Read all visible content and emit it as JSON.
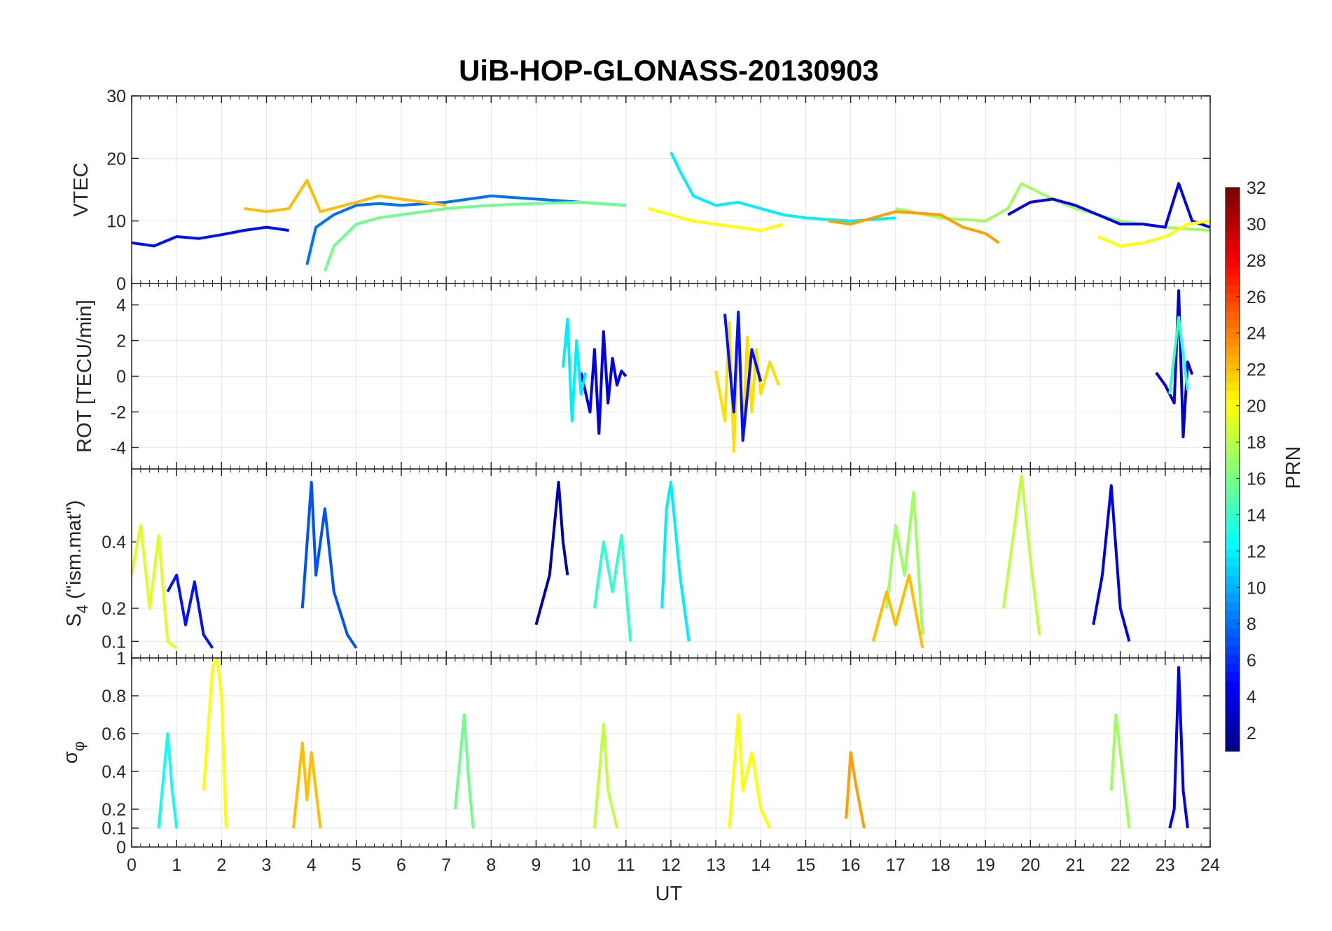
{
  "chart_data": {
    "title": "UiB-HOP-GLONASS-20130903",
    "type": "line",
    "x_label": "UT",
    "x_range": [
      0,
      24
    ],
    "x_ticks": [
      0,
      1,
      2,
      3,
      4,
      5,
      6,
      7,
      8,
      9,
      10,
      11,
      12,
      13,
      14,
      15,
      16,
      17,
      18,
      19,
      20,
      21,
      22,
      23,
      24
    ],
    "colorbar": {
      "label": "PRN",
      "range": [
        1,
        32
      ],
      "ticks": [
        2,
        4,
        6,
        8,
        10,
        12,
        14,
        16,
        18,
        20,
        22,
        24,
        26,
        28,
        30,
        32
      ],
      "colormap": "jet",
      "colors": [
        "#00008F",
        "#00009F",
        "#0000AF",
        "#0000BF",
        "#0000CF",
        "#0000DF",
        "#0000EF",
        "#0000FF",
        "#0010FF",
        "#0020FF",
        "#0030FF",
        "#0040FF",
        "#0050FF",
        "#0060FF",
        "#0070FF",
        "#0080FF",
        "#008FFF",
        "#009FFF",
        "#00AFFF",
        "#00BFFF",
        "#00CFFF",
        "#00DFFF",
        "#00EFFF",
        "#00FFFF",
        "#10FFEF",
        "#20FFDF",
        "#30FFCF",
        "#40FFBF",
        "#50FFAF",
        "#60FF9F",
        "#70FF8F",
        "#80FF80",
        "#8FFF70",
        "#9FFF60",
        "#AFFF50",
        "#BFFF40",
        "#CFFF30",
        "#DFFF20",
        "#EFFF10",
        "#FFFF00",
        "#FFEF00",
        "#FFDF00",
        "#FFCF00",
        "#FFBF00",
        "#FFAF00",
        "#FF9F00",
        "#FF8F00",
        "#FF8000",
        "#FF7000",
        "#FF6000",
        "#FF5000",
        "#FF4000",
        "#FF3000",
        "#FF2000",
        "#FF1000",
        "#FF0000",
        "#EF0000",
        "#DF0000",
        "#CF0000",
        "#BF0000",
        "#AF0000",
        "#9F0000",
        "#8F0000",
        "#800000"
      ]
    },
    "panels": [
      {
        "id": "vtec",
        "ylabel": "VTEC",
        "ylim": [
          0,
          30
        ],
        "yticks": [
          0,
          10,
          20,
          30
        ],
        "series": [
          {
            "prn": 5,
            "x": [
              0.0,
              0.5,
              1.0,
              1.5,
              2.0,
              2.5,
              3.0,
              3.5
            ],
            "y": [
              6.5,
              6.0,
              7.5,
              7.2,
              7.8,
              8.5,
              9.0,
              8.5
            ]
          },
          {
            "prn": 8,
            "x": [
              3.9,
              4.1,
              4.5,
              5.0,
              5.5,
              6.0,
              7.0,
              8.0,
              9.0,
              10.0,
              11.0
            ],
            "y": [
              3.0,
              9.0,
              11.0,
              12.5,
              12.8,
              12.5,
              13.0,
              14.0,
              13.5,
              13.0,
              12.5
            ]
          },
          {
            "prn": 16,
            "x": [
              4.3,
              4.5,
              5.0,
              5.5,
              6.0,
              7.0,
              8.0,
              9.0,
              10.0,
              11.0
            ],
            "y": [
              2.0,
              6.0,
              9.5,
              10.5,
              11.0,
              12.0,
              12.5,
              12.8,
              13.0,
              12.5
            ]
          },
          {
            "prn": 22,
            "x": [
              2.5,
              3.0,
              3.5,
              3.9,
              4.2,
              5.0,
              5.5,
              6.0,
              7.0
            ],
            "y": [
              12.0,
              11.5,
              12.0,
              16.5,
              11.5,
              13.0,
              14.0,
              13.5,
              12.5
            ]
          },
          {
            "prn": 12,
            "x": [
              12.0,
              12.2,
              12.5,
              13.0,
              13.5,
              14.0,
              14.5,
              15.0,
              16.0,
              17.0
            ],
            "y": [
              21.0,
              18.0,
              14.0,
              12.5,
              13.0,
              12.0,
              11.0,
              10.5,
              10.0,
              10.5
            ]
          },
          {
            "prn": 20,
            "x": [
              11.5,
              12.0,
              12.5,
              13.0,
              13.5,
              14.0,
              14.5
            ],
            "y": [
              12.0,
              11.0,
              10.0,
              9.5,
              9.0,
              8.5,
              9.5
            ]
          },
          {
            "prn": 17,
            "x": [
              17.0,
              18.0,
              19.0,
              19.5,
              19.8,
              20.5,
              21.0,
              22.0,
              23.0,
              24.0
            ],
            "y": [
              12.0,
              10.5,
              10.0,
              12.0,
              16.0,
              13.5,
              12.0,
              10.0,
              9.0,
              8.5
            ]
          },
          {
            "prn": 4,
            "x": [
              19.5,
              20.0,
              20.5,
              21.0,
              21.5,
              22.0,
              22.5,
              23.0,
              23.3,
              23.6,
              24.0
            ],
            "y": [
              11.0,
              13.0,
              13.5,
              12.5,
              11.0,
              9.5,
              9.5,
              9.0,
              16.0,
              10.0,
              9.0
            ]
          },
          {
            "prn": 23,
            "x": [
              15.5,
              16.0,
              17.0,
              18.0,
              18.5,
              19.0,
              19.3
            ],
            "y": [
              10.0,
              9.5,
              11.5,
              11.0,
              9.0,
              8.0,
              6.5
            ]
          },
          {
            "prn": 20,
            "x": [
              21.5,
              22.0,
              22.5,
              23.0,
              23.5,
              24.0
            ],
            "y": [
              7.5,
              6.0,
              6.5,
              7.5,
              9.5,
              10.0
            ]
          }
        ]
      },
      {
        "id": "rot",
        "ylabel": "ROT [TECU/min]",
        "ylim": [
          -5.2,
          5.2
        ],
        "yticks": [
          -4,
          -2,
          0,
          2,
          4
        ],
        "series": [
          {
            "prn": 4,
            "x": [
              10.0,
              10.2,
              10.3,
              10.4,
              10.5,
              10.6,
              10.7,
              10.8,
              10.9,
              11.0
            ],
            "y": [
              0.2,
              -2.0,
              1.5,
              -3.2,
              2.5,
              -1.5,
              1.0,
              -0.5,
              0.3,
              0.0
            ]
          },
          {
            "prn": 12,
            "x": [
              9.6,
              9.7,
              9.8,
              9.9,
              10.0,
              10.1
            ],
            "y": [
              0.5,
              3.2,
              -2.5,
              2.0,
              -1.0,
              0.2
            ]
          },
          {
            "prn": 21,
            "x": [
              13.0,
              13.2,
              13.3,
              13.4,
              13.5,
              13.6,
              13.7,
              13.8,
              13.9,
              14.0,
              14.2,
              14.4
            ],
            "y": [
              0.3,
              -2.5,
              3.0,
              -4.2,
              2.6,
              -3.5,
              2.2,
              -2.0,
              1.5,
              -1.0,
              0.8,
              -0.5
            ]
          },
          {
            "prn": 5,
            "x": [
              13.2,
              13.4,
              13.5,
              13.6,
              13.8,
              14.0
            ],
            "y": [
              3.5,
              -2.0,
              3.6,
              -3.6,
              1.5,
              -0.3
            ]
          },
          {
            "prn": 3,
            "x": [
              22.8,
              23.0,
              23.2,
              23.3,
              23.4,
              23.5,
              23.6
            ],
            "y": [
              0.2,
              -0.5,
              -1.5,
              4.8,
              -3.4,
              0.8,
              0.1
            ]
          },
          {
            "prn": 14,
            "x": [
              23.1,
              23.3,
              23.5
            ],
            "y": [
              -1.0,
              3.3,
              -0.8
            ]
          }
        ]
      },
      {
        "id": "s4",
        "ylabel": "S4 (\"ism.mat\")",
        "ylabel_main": "S",
        "ylabel_sub": "4",
        "ylabel_rest": " (\"ism.mat\")",
        "ylim": [
          0.05,
          0.62
        ],
        "yticks": [
          0.1,
          0.2,
          0.4
        ],
        "series": [
          {
            "prn": 19,
            "x": [
              0.0,
              0.2,
              0.4,
              0.6,
              0.8,
              1.0
            ],
            "y": [
              0.3,
              0.45,
              0.2,
              0.42,
              0.1,
              0.08
            ]
          },
          {
            "prn": 5,
            "x": [
              0.8,
              1.0,
              1.2,
              1.4,
              1.6,
              1.8
            ],
            "y": [
              0.25,
              0.3,
              0.15,
              0.28,
              0.12,
              0.08
            ]
          },
          {
            "prn": 7,
            "x": [
              3.8,
              4.0,
              4.1,
              4.3,
              4.5,
              4.8,
              5.0
            ],
            "y": [
              0.2,
              0.58,
              0.3,
              0.5,
              0.25,
              0.12,
              0.08
            ]
          },
          {
            "prn": 2,
            "x": [
              9.0,
              9.3,
              9.5,
              9.6,
              9.7
            ],
            "y": [
              0.15,
              0.3,
              0.58,
              0.4,
              0.3
            ]
          },
          {
            "prn": 14,
            "x": [
              10.3,
              10.5,
              10.7,
              10.9,
              11.1
            ],
            "y": [
              0.2,
              0.4,
              0.25,
              0.42,
              0.1
            ]
          },
          {
            "prn": 12,
            "x": [
              11.8,
              11.9,
              12.0,
              12.2,
              12.4
            ],
            "y": [
              0.2,
              0.5,
              0.58,
              0.3,
              0.1
            ]
          },
          {
            "prn": 17,
            "x": [
              16.8,
              17.0,
              17.2,
              17.4,
              17.6
            ],
            "y": [
              0.2,
              0.45,
              0.3,
              0.55,
              0.12
            ]
          },
          {
            "prn": 18,
            "x": [
              19.4,
              19.6,
              19.8,
              20.0,
              20.2
            ],
            "y": [
              0.2,
              0.4,
              0.6,
              0.35,
              0.12
            ]
          },
          {
            "prn": 4,
            "x": [
              21.4,
              21.6,
              21.8,
              22.0,
              22.2
            ],
            "y": [
              0.15,
              0.3,
              0.57,
              0.2,
              0.1
            ]
          },
          {
            "prn": 22,
            "x": [
              16.5,
              16.8,
              17.0,
              17.3,
              17.6
            ],
            "y": [
              0.1,
              0.25,
              0.15,
              0.3,
              0.08
            ]
          }
        ]
      },
      {
        "id": "sigma",
        "ylabel": "σφ",
        "ylabel_main": "σ",
        "ylabel_sub": "φ",
        "ylim": [
          0,
          1.0
        ],
        "yticks": [
          0,
          0.1,
          0.2,
          0.4,
          0.6,
          0.8,
          1
        ],
        "series": [
          {
            "prn": 20,
            "x": [
              1.6,
              1.8,
              1.9,
              2.0,
              2.1
            ],
            "y": [
              0.3,
              0.95,
              1.0,
              0.8,
              0.1
            ]
          },
          {
            "prn": 13,
            "x": [
              0.6,
              0.8,
              0.9,
              1.0
            ],
            "y": [
              0.1,
              0.6,
              0.3,
              0.1
            ]
          },
          {
            "prn": 22,
            "x": [
              3.6,
              3.8,
              3.9,
              4.0,
              4.2
            ],
            "y": [
              0.1,
              0.55,
              0.25,
              0.5,
              0.1
            ]
          },
          {
            "prn": 16,
            "x": [
              7.2,
              7.4,
              7.5,
              7.6
            ],
            "y": [
              0.2,
              0.7,
              0.35,
              0.1
            ]
          },
          {
            "prn": 18,
            "x": [
              10.3,
              10.5,
              10.6,
              10.8
            ],
            "y": [
              0.1,
              0.65,
              0.3,
              0.1
            ]
          },
          {
            "prn": 20,
            "x": [
              13.3,
              13.5,
              13.6,
              13.8,
              14.0,
              14.2
            ],
            "y": [
              0.1,
              0.7,
              0.3,
              0.5,
              0.2,
              0.1
            ]
          },
          {
            "prn": 23,
            "x": [
              15.9,
              16.0,
              16.1,
              16.3
            ],
            "y": [
              0.15,
              0.5,
              0.35,
              0.1
            ]
          },
          {
            "prn": 17,
            "x": [
              21.8,
              21.9,
              22.0,
              22.2
            ],
            "y": [
              0.3,
              0.7,
              0.5,
              0.1
            ]
          },
          {
            "prn": 4,
            "x": [
              23.1,
              23.2,
              23.3,
              23.4,
              23.5
            ],
            "y": [
              0.1,
              0.2,
              0.95,
              0.3,
              0.1
            ]
          }
        ]
      }
    ]
  }
}
